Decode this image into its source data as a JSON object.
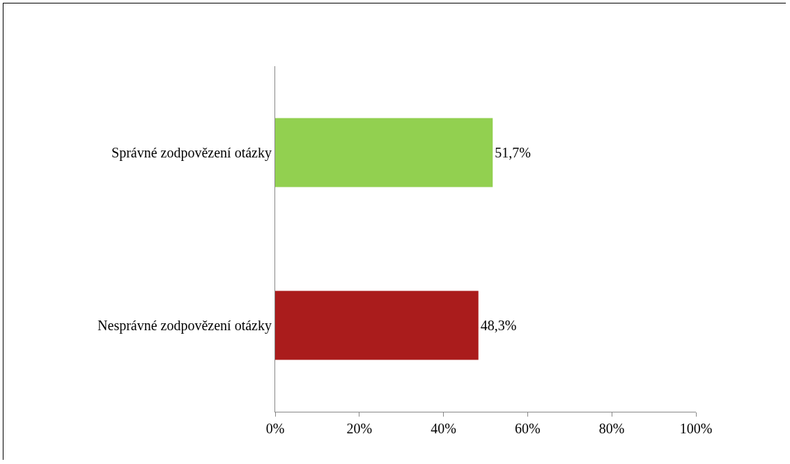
{
  "chart_data": {
    "type": "bar",
    "orientation": "horizontal",
    "categories": [
      "Správné zodpovězení otázky",
      "Nesprávné zodpovězení otázky"
    ],
    "values": [
      51.7,
      48.3
    ],
    "colors": [
      "#92d050",
      "#aa1c1c"
    ],
    "value_labels": [
      "51,7%",
      "48,3%"
    ],
    "xlim": [
      0,
      100
    ],
    "xticks": [
      {
        "value": 0,
        "label": "0%"
      },
      {
        "value": 20,
        "label": "20%"
      },
      {
        "value": 40,
        "label": "40%"
      },
      {
        "value": 60,
        "label": "60%"
      },
      {
        "value": 80,
        "label": "80%"
      },
      {
        "value": 100,
        "label": "100%"
      }
    ],
    "grid": false
  }
}
